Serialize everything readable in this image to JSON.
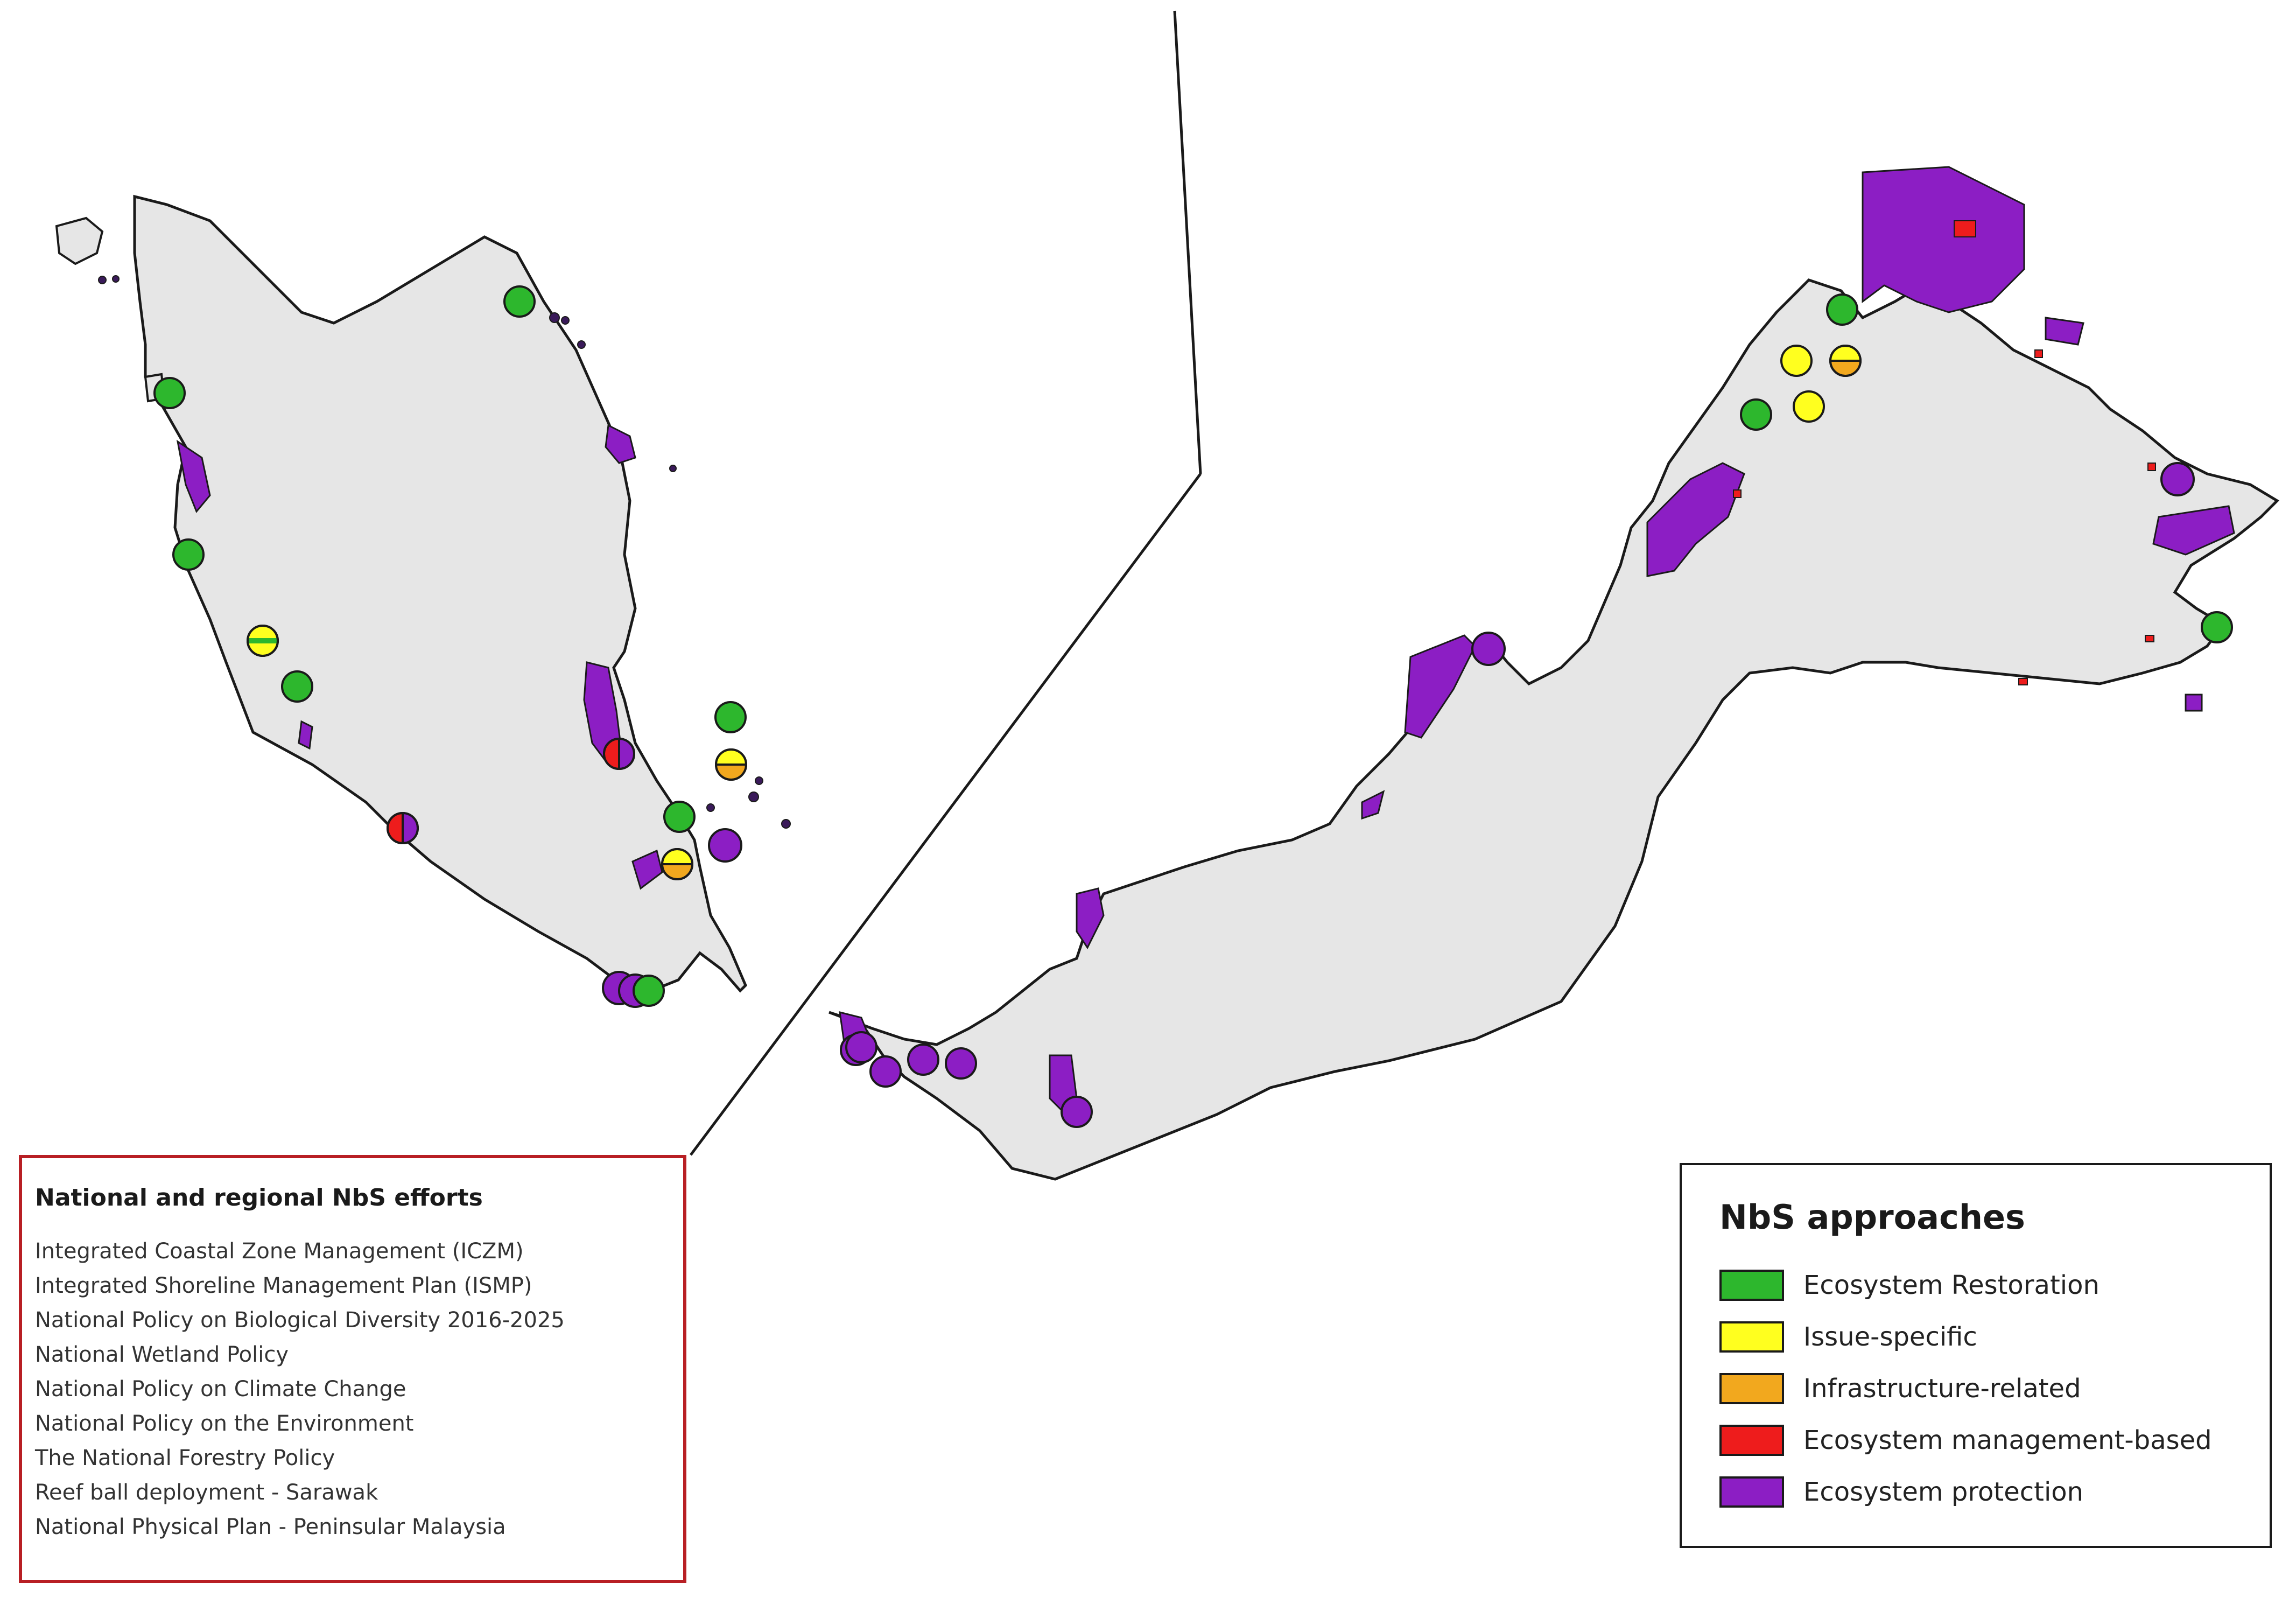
{
  "policy_box": {
    "title": "National and regional NbS efforts",
    "items": [
      "Integrated Coastal Zone Management (ICZM)",
      "Integrated Shoreline Management Plan (ISMP)",
      "National Policy on Biological Diversity 2016-2025",
      "National Wetland Policy",
      "National Policy on Climate Change",
      "National Policy on the Environment",
      "The  National  Forestry  Policy",
      "Reef ball deployment - Sarawak",
      "National Physical Plan - Peninsular Malaysia"
    ]
  },
  "legend": {
    "title": "NbS approaches",
    "items": [
      {
        "label": "Ecosystem Restoration",
        "color": "#2db72d"
      },
      {
        "label": "Issue-specific",
        "color": "#ffff1f"
      },
      {
        "label": "Infrastructure-related",
        "color": "#f2a81e"
      },
      {
        "label": "Ecosystem management-based",
        "color": "#ee1c1c"
      },
      {
        "label": "Ecosystem protection",
        "color": "#8c1ec4"
      }
    ]
  },
  "colors": {
    "land": "#e6e6e6",
    "coast_outline": "#1a1a1a",
    "policy_border": "#b81f24"
  }
}
